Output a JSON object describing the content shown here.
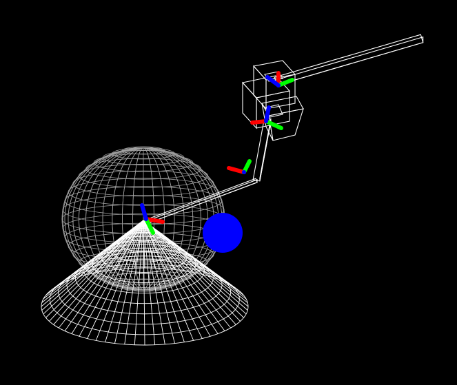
{
  "scene": {
    "background": "#000000",
    "wire_color": "#ffffff",
    "sphere_wire_color": "#a0a0a0",
    "axis_colors": {
      "x": "#ff0000",
      "y": "#00ff00",
      "z": "#0000ff"
    },
    "target_color": "#0000ff",
    "objects": [
      "workspace-sphere-wireframe",
      "base-cone-wireframe",
      "arm-link-1",
      "arm-link-2",
      "arm-link-3",
      "wrist-boxes",
      "end-effector-bar",
      "target-sphere"
    ]
  }
}
